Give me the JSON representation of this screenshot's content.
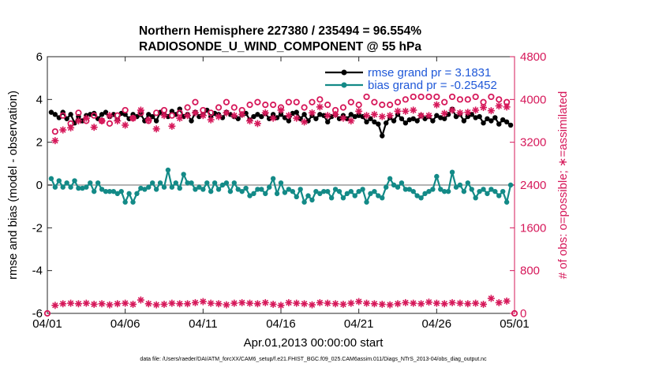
{
  "chart_data": {
    "type": "line",
    "title": "Northern Hemisphere 227380 / 235494 = 96.554%",
    "subtitle": "RADIOSONDE_U_WIND_COMPONENT @ 55 hPa",
    "xlabel": "Apr.01,2013 00:00:00 start",
    "ylabel": "rmse and bias (model - observation)",
    "y2label": "# of obs: o=possible; ∗=assimilated",
    "footer": "data file: /Users/raeder/DAI/ATM_forcXX/CAM6_setup/f.e21.FHIST_BGC.f09_025.CAM6assim.011/Diags_NTrS_2013-04/obs_diag_output.nc",
    "xlim": [
      0,
      30
    ],
    "ylim": [
      -6,
      6
    ],
    "y2lim": [
      0,
      4800
    ],
    "x_ticks": [
      0,
      5,
      10,
      15,
      20,
      25,
      30
    ],
    "x_tick_labels": [
      "04/01",
      "04/06",
      "04/11",
      "04/16",
      "04/21",
      "04/26",
      "05/01"
    ],
    "y_ticks": [
      -6,
      -4,
      -2,
      0,
      2,
      4,
      6
    ],
    "y_tick_labels": [
      "-6",
      "-4",
      "-2",
      "0",
      "2",
      "4",
      "6"
    ],
    "y2_ticks": [
      0,
      800,
      1600,
      2400,
      3200,
      4000,
      4800
    ],
    "y2_tick_labels": [
      "0",
      "800",
      "1600",
      "2400",
      "3200",
      "4000",
      "4800"
    ],
    "legend_position": "top-right",
    "colors": {
      "rmse": "#000000",
      "bias": "#138a87",
      "obs": "#d6185a",
      "zero_line": "#b4b4b4",
      "legend_text": "#1f58d8"
    },
    "series": [
      {
        "name": "rmse grand pr = 3.1831",
        "axis": "left",
        "x": [
          0.25,
          0.5,
          0.75,
          1.0,
          1.25,
          1.5,
          1.75,
          2.0,
          2.25,
          2.5,
          2.75,
          3.0,
          3.25,
          3.5,
          3.75,
          4.0,
          4.25,
          4.5,
          4.75,
          5.0,
          5.25,
          5.5,
          5.75,
          6.0,
          6.25,
          6.5,
          6.75,
          7.0,
          7.25,
          7.5,
          7.75,
          8.0,
          8.25,
          8.5,
          8.75,
          9.0,
          9.25,
          9.5,
          9.75,
          10.0,
          10.25,
          10.5,
          10.75,
          11.0,
          11.25,
          11.5,
          11.75,
          12.0,
          12.25,
          12.5,
          12.75,
          13.0,
          13.25,
          13.5,
          13.75,
          14.0,
          14.25,
          14.5,
          14.75,
          15.0,
          15.25,
          15.5,
          15.75,
          16.0,
          16.25,
          16.5,
          16.75,
          17.0,
          17.25,
          17.5,
          17.75,
          18.0,
          18.25,
          18.5,
          18.75,
          19.0,
          19.25,
          19.5,
          19.75,
          20.0,
          20.25,
          20.5,
          20.75,
          21.0,
          21.25,
          21.5,
          21.75,
          22.0,
          22.25,
          22.5,
          22.75,
          23.0,
          23.25,
          23.5,
          23.75,
          24.0,
          24.25,
          24.5,
          24.75,
          25.0,
          25.25,
          25.5,
          25.75,
          26.0,
          26.25,
          26.5,
          26.75,
          27.0,
          27.25,
          27.5,
          27.75,
          28.0,
          28.25,
          28.5,
          28.75,
          29.0,
          29.25,
          29.5,
          29.75
        ],
        "values": [
          3.4,
          3.3,
          3.15,
          3.4,
          3.1,
          3.3,
          2.9,
          3.2,
          3.0,
          3.25,
          3.3,
          3.35,
          3.1,
          3.3,
          3.4,
          3.2,
          3.3,
          3.05,
          3.35,
          3.3,
          3.1,
          3.3,
          3.2,
          3.3,
          3.0,
          3.3,
          3.2,
          3.0,
          3.4,
          3.3,
          3.2,
          3.45,
          3.3,
          3.55,
          3.2,
          3.3,
          3.0,
          3.4,
          3.2,
          3.3,
          3.5,
          3.2,
          3.35,
          3.3,
          3.15,
          3.4,
          3.3,
          3.2,
          3.1,
          3.3,
          3.35,
          3.05,
          3.2,
          3.3,
          3.2,
          3.35,
          3.1,
          3.3,
          3.15,
          3.3,
          3.15,
          3.0,
          3.35,
          3.4,
          3.1,
          3.3,
          3.0,
          3.25,
          3.1,
          3.3,
          3.25,
          2.95,
          3.2,
          3.3,
          3.1,
          3.25,
          3.1,
          3.3,
          3.2,
          3.25,
          3.2,
          2.95,
          3.1,
          2.95,
          2.85,
          2.3,
          2.9,
          3.15,
          3.0,
          3.3,
          3.1,
          2.9,
          3.05,
          3.1,
          3.0,
          3.25,
          3.1,
          3.2,
          3.0,
          3.25,
          3.15,
          3.1,
          3.3,
          3.55,
          3.2,
          3.3,
          3.0,
          3.2,
          3.3,
          3.15,
          3.2,
          2.9,
          3.1,
          3.0,
          3.15,
          2.85,
          3.05,
          2.95,
          2.8
        ]
      },
      {
        "name": "bias grand pr = -0.25452",
        "axis": "left",
        "x": [
          0.25,
          0.5,
          0.75,
          1.0,
          1.25,
          1.5,
          1.75,
          2.0,
          2.25,
          2.5,
          2.75,
          3.0,
          3.25,
          3.5,
          3.75,
          4.0,
          4.25,
          4.5,
          4.75,
          5.0,
          5.25,
          5.5,
          5.75,
          6.0,
          6.25,
          6.5,
          6.75,
          7.0,
          7.25,
          7.5,
          7.75,
          8.0,
          8.25,
          8.5,
          8.75,
          9.0,
          9.25,
          9.5,
          9.75,
          10.0,
          10.25,
          10.5,
          10.75,
          11.0,
          11.25,
          11.5,
          11.75,
          12.0,
          12.25,
          12.5,
          12.75,
          13.0,
          13.25,
          13.5,
          13.75,
          14.0,
          14.25,
          14.5,
          14.75,
          15.0,
          15.25,
          15.5,
          15.75,
          16.0,
          16.25,
          16.5,
          16.75,
          17.0,
          17.25,
          17.5,
          17.75,
          18.0,
          18.25,
          18.5,
          18.75,
          19.0,
          19.25,
          19.5,
          19.75,
          20.0,
          20.25,
          20.5,
          20.75,
          21.0,
          21.25,
          21.5,
          21.75,
          22.0,
          22.25,
          22.5,
          22.75,
          23.0,
          23.25,
          23.5,
          23.75,
          24.0,
          24.25,
          24.5,
          24.75,
          25.0,
          25.25,
          25.5,
          25.75,
          26.0,
          26.25,
          26.5,
          26.75,
          27.0,
          27.25,
          27.5,
          27.75,
          28.0,
          28.25,
          28.5,
          28.75,
          29.0,
          29.25,
          29.5,
          29.75
        ],
        "values": [
          0.3,
          -0.1,
          0.2,
          -0.1,
          0.1,
          -0.1,
          0.2,
          -0.15,
          -0.15,
          -0.1,
          0.1,
          -0.3,
          0.1,
          -0.2,
          -0.3,
          -0.3,
          -0.3,
          -0.4,
          -0.3,
          -0.8,
          -0.4,
          -0.8,
          -0.4,
          -0.15,
          -0.2,
          -0.1,
          0.1,
          -0.2,
          0.1,
          -0.1,
          0.7,
          -0.1,
          0.1,
          -0.15,
          0.5,
          0.1,
          0.1,
          -0.2,
          -0.1,
          -0.2,
          0.1,
          -0.3,
          0.1,
          -0.2,
          0.0,
          0.1,
          -0.3,
          0.1,
          -0.2,
          -0.3,
          -0.15,
          -0.5,
          -0.4,
          -0.2,
          -0.2,
          -0.4,
          -0.1,
          0.3,
          -0.4,
          0.1,
          -0.35,
          -0.2,
          -0.3,
          -0.55,
          -0.2,
          -0.8,
          -0.5,
          -0.7,
          -0.3,
          -0.4,
          -0.3,
          -0.3,
          -0.6,
          -0.2,
          -0.3,
          -0.6,
          -0.4,
          -0.3,
          -0.5,
          -0.3,
          -0.2,
          -0.8,
          -0.4,
          -0.3,
          -0.5,
          -0.6,
          -0.1,
          0.3,
          0.0,
          -0.1,
          0.1,
          -0.2,
          -0.2,
          -0.3,
          -0.5,
          -0.6,
          -0.4,
          -0.3,
          -0.2,
          0.4,
          -0.2,
          -0.3,
          -0.3,
          0.6,
          -0.1,
          0.0,
          -0.3,
          0.1,
          -0.2,
          -0.6,
          -0.3,
          -0.2,
          -0.4,
          -0.2,
          -0.3,
          -0.5,
          -0.3,
          -0.8,
          0.0
        ]
      },
      {
        "name": "possible obs",
        "axis": "right",
        "marker": "circle",
        "x": [
          0.5,
          1.0,
          1.5,
          2.0,
          2.5,
          3.0,
          3.5,
          4.0,
          4.5,
          5.0,
          5.5,
          6.0,
          6.5,
          7.0,
          7.5,
          8.0,
          8.5,
          9.0,
          9.5,
          10.0,
          10.5,
          11.0,
          11.5,
          12.0,
          12.5,
          13.0,
          13.5,
          14.0,
          14.5,
          15.0,
          15.5,
          16.0,
          16.5,
          17.0,
          17.5,
          18.0,
          18.5,
          19.0,
          19.5,
          20.0,
          20.5,
          21.0,
          21.5,
          22.0,
          22.5,
          23.0,
          23.5,
          24.0,
          24.5,
          25.0,
          25.5,
          26.0,
          26.5,
          27.0,
          27.5,
          28.0,
          28.5,
          29.0,
          29.5
        ],
        "values": [
          3400,
          3700,
          3550,
          3750,
          3600,
          3700,
          3600,
          3550,
          3700,
          3800,
          3650,
          3750,
          3600,
          3750,
          3800,
          3700,
          3750,
          3850,
          3950,
          3800,
          3750,
          3850,
          3950,
          3850,
          3800,
          3900,
          3950,
          3900,
          3900,
          3850,
          3950,
          3950,
          3850,
          3950,
          4000,
          3900,
          3800,
          3850,
          3950,
          3900,
          4050,
          3950,
          3900,
          3900,
          3950,
          4000,
          4050,
          4050,
          4050,
          4050,
          3950,
          4050,
          4000,
          4000,
          4050,
          3950,
          4050,
          4000,
          3950
        ]
      },
      {
        "name": "assimilated obs",
        "axis": "right",
        "marker": "asterisk",
        "x": [
          0.5,
          1.0,
          1.5,
          2.0,
          2.5,
          3.0,
          3.5,
          4.0,
          4.5,
          5.0,
          5.5,
          6.0,
          6.5,
          7.0,
          7.5,
          8.0,
          8.5,
          9.0,
          9.5,
          10.0,
          10.5,
          11.0,
          11.5,
          12.0,
          12.5,
          13.0,
          13.5,
          14.0,
          14.5,
          15.0,
          15.5,
          16.0,
          16.5,
          17.0,
          17.5,
          18.0,
          18.5,
          19.0,
          19.5,
          20.0,
          20.5,
          21.0,
          21.5,
          22.0,
          22.5,
          23.0,
          23.5,
          24.0,
          24.5,
          25.0,
          25.5,
          26.0,
          26.5,
          27.0,
          27.5,
          28.0,
          28.5,
          29.0,
          29.5
        ],
        "values": [
          3230,
          3430,
          3470,
          3600,
          3650,
          3480,
          3600,
          3700,
          3600,
          3520,
          3650,
          3800,
          3620,
          3450,
          3700,
          3500,
          3650,
          3700,
          3750,
          3700,
          3620,
          3680,
          3750,
          3700,
          3720,
          3600,
          3550,
          3750,
          3650,
          3800,
          3700,
          3650,
          3580,
          3750,
          3860,
          3700,
          3720,
          3650,
          3600,
          3780,
          3700,
          3720,
          3680,
          3700,
          3780,
          3780,
          3800,
          3700,
          3700,
          3900,
          3740,
          3800,
          3750,
          3760,
          3800,
          3850,
          3790,
          3880,
          3860
        ]
      },
      {
        "name": "possible obs (surface)",
        "axis": "right",
        "marker": "circle",
        "x": [
          0,
          30
        ],
        "values": [
          0,
          0
        ]
      },
      {
        "name": "assimilated obs (surface)",
        "axis": "right",
        "marker": "asterisk",
        "x": [
          0.5,
          1.0,
          1.5,
          2.0,
          2.5,
          3.0,
          3.5,
          4.0,
          4.5,
          5.0,
          5.5,
          6.0,
          6.5,
          7.0,
          7.5,
          8.0,
          8.5,
          9.0,
          9.5,
          10.0,
          10.5,
          11.0,
          11.5,
          12.0,
          12.5,
          13.0,
          13.5,
          14.0,
          14.5,
          15.0,
          15.5,
          16.0,
          16.5,
          17.0,
          17.5,
          18.0,
          18.5,
          19.0,
          19.5,
          20.0,
          20.5,
          21.0,
          21.5,
          22.0,
          22.5,
          23.0,
          23.5,
          24.0,
          24.5,
          25.0,
          25.5,
          26.0,
          26.5,
          27.0,
          27.5,
          28.0,
          28.5,
          29.0,
          29.5
        ],
        "values": [
          150,
          180,
          190,
          180,
          190,
          170,
          180,
          160,
          180,
          190,
          170,
          250,
          180,
          160,
          170,
          190,
          180,
          180,
          200,
          220,
          190,
          180,
          160,
          190,
          200,
          190,
          180,
          200,
          170,
          150,
          200,
          190,
          180,
          160,
          200,
          190,
          180,
          170,
          190,
          220,
          190,
          180,
          170,
          160,
          180,
          200,
          190,
          180,
          210,
          190,
          180,
          200,
          190,
          180,
          190,
          170,
          280,
          200,
          230
        ]
      }
    ]
  }
}
